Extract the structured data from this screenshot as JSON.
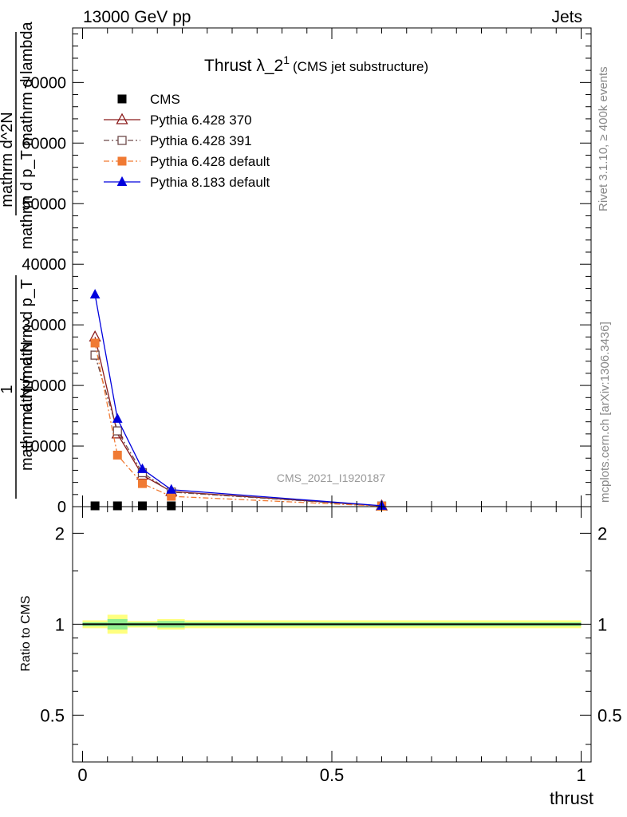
{
  "header": {
    "energy_label": "13000 GeV pp",
    "category_label": "Jets"
  },
  "side_labels": {
    "rivet": "Rivet 3.1.10, ≥ 400k events",
    "mcplots": "mcplots.cern.ch [arXiv:1306.3436]"
  },
  "watermark": "CMS_2021_I1920187",
  "colors": {
    "cms": "#000000",
    "p370": "#8b1a1a",
    "p391": "#6e4a4a",
    "p6def": "#f07a33",
    "p8def": "#0000dd",
    "band_inner": "#90ee90",
    "band_outer": "#ffff7f"
  },
  "chart_data": [
    {
      "type": "line",
      "title_main": "Thrust λ_2",
      "title_sup": "1",
      "title_sub": "(CMS jet substructure)",
      "ylabel_top": "1",
      "ylabel_num": "mathrm d N",
      "ylabel_den": "mathrm d N /mathrm d p_T",
      "ylabel_den_sub": "T",
      "ylabel_right_top": "mathrm d^2N",
      "ylabel_right_bot": "mathrm d p_T mathrm d lambda",
      "ylabel_right_sub": "T",
      "xlim": [
        -0.02,
        1.02
      ],
      "ylim": [
        0,
        79000
      ],
      "yticks": [
        {
          "v": 0,
          "label": "0"
        },
        {
          "v": 10000,
          "label": "10000"
        },
        {
          "v": 20000,
          "label": "20000"
        },
        {
          "v": 30000,
          "label": "30000"
        },
        {
          "v": 40000,
          "label": "40000"
        },
        {
          "v": 50000,
          "label": "50000"
        },
        {
          "v": 60000,
          "label": "60000"
        },
        {
          "v": 70000,
          "label": "70000"
        }
      ],
      "legend": {
        "position": "top-left"
      },
      "series": [
        {
          "name": "CMS",
          "key": "cms",
          "marker": "square",
          "line": "none",
          "x": [
            0.025,
            0.07,
            0.12,
            0.178
          ],
          "y": [
            0,
            0,
            0,
            0
          ]
        },
        {
          "name": "Pythia 6.428 370",
          "key": "p370",
          "marker": "triangle-open",
          "line": "solid",
          "x": [
            0.025,
            0.07,
            0.12,
            0.178,
            0.6
          ],
          "y": [
            28000,
            12000,
            5200,
            2500,
            120
          ]
        },
        {
          "name": "Pythia 6.428 391",
          "key": "p391",
          "marker": "square-open",
          "line": "dashdot",
          "x": [
            0.025,
            0.07,
            0.12,
            0.178,
            0.6
          ],
          "y": [
            25000,
            12500,
            5600,
            2400,
            100
          ]
        },
        {
          "name": "Pythia 6.428 default",
          "key": "p6def",
          "marker": "square",
          "line": "dashdot",
          "x": [
            0.025,
            0.07,
            0.12,
            0.178,
            0.6
          ],
          "y": [
            27000,
            8500,
            3800,
            1700,
            80
          ]
        },
        {
          "name": "Pythia 8.183 default",
          "key": "p8def",
          "marker": "triangle",
          "line": "solid",
          "x": [
            0.025,
            0.07,
            0.12,
            0.178,
            0.6
          ],
          "y": [
            35000,
            14500,
            6200,
            2800,
            150
          ]
        }
      ]
    },
    {
      "type": "line",
      "ylabel": "Ratio to CMS",
      "xlabel": "thrust",
      "xlim": [
        -0.02,
        1.02
      ],
      "ylim": [
        0.35,
        2.45
      ],
      "log_y": true,
      "xticks": [
        {
          "v": 0,
          "label": "0"
        },
        {
          "v": 0.5,
          "label": "0.5"
        },
        {
          "v": 1,
          "label": "1"
        }
      ],
      "yticks": [
        {
          "v": 0.5,
          "label": "0.5"
        },
        {
          "v": 1,
          "label": "1"
        },
        {
          "v": 2,
          "label": "2"
        }
      ],
      "reference": 1,
      "bands": [
        {
          "x0": 0.0,
          "x1": 0.05,
          "inner": [
            0.985,
            1.015
          ],
          "outer": [
            0.97,
            1.03
          ]
        },
        {
          "x0": 0.05,
          "x1": 0.09,
          "inner": [
            0.96,
            1.04
          ],
          "outer": [
            0.93,
            1.075
          ]
        },
        {
          "x0": 0.09,
          "x1": 0.15,
          "inner": [
            0.985,
            1.015
          ],
          "outer": [
            0.975,
            1.025
          ]
        },
        {
          "x0": 0.15,
          "x1": 0.205,
          "inner": [
            0.975,
            1.025
          ],
          "outer": [
            0.96,
            1.04
          ]
        },
        {
          "x0": 0.205,
          "x1": 1.0,
          "inner": [
            0.985,
            1.015
          ],
          "outer": [
            0.97,
            1.03
          ]
        }
      ]
    }
  ]
}
